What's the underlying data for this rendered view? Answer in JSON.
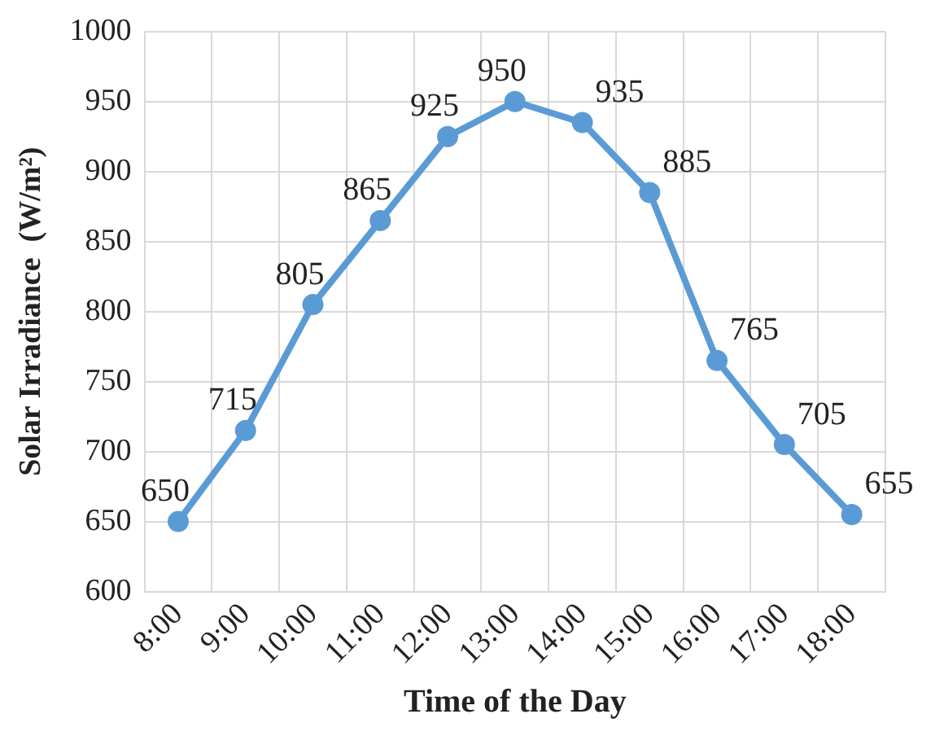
{
  "chart_data": {
    "type": "line",
    "xlabel": "Time of the Day",
    "ylabel": "Solar Irradiance  (W/m²)",
    "categories": [
      "8:00",
      "9:00",
      "10:00",
      "11:00",
      "12:00",
      "13:00",
      "14:00",
      "15:00",
      "16:00",
      "17:00",
      "18:00"
    ],
    "series": [
      {
        "color": "#5b9bd5",
        "values": [
          650,
          715,
          805,
          865,
          925,
          950,
          935,
          885,
          765,
          705,
          655
        ]
      }
    ],
    "ylim": [
      600,
      1000
    ],
    "yticks": [
      600,
      650,
      700,
      750,
      800,
      850,
      900,
      950,
      1000
    ],
    "grid": true,
    "marker": "circle",
    "line_style": "solid",
    "data_labels": true,
    "legend": false
  }
}
